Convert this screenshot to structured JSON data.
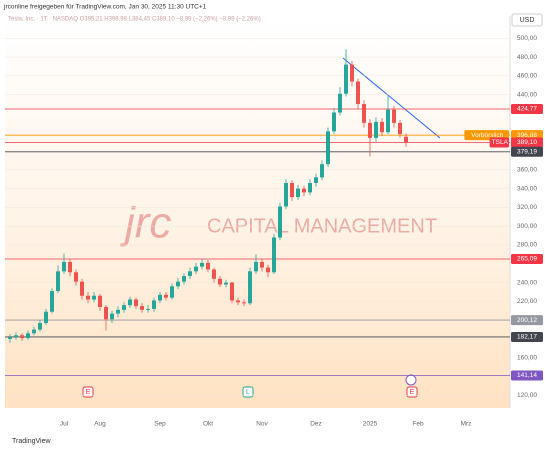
{
  "header": {
    "shared_by": "jrconline freigegeben für TradingView.com, Jan 30, 2025 11:30 UTC+1",
    "legend": "Tesla, Inc. · 1T · NASDAQ  O395,21 H398,98 L384,45 C389,10 −8,99 (−2,26%) −8,99 (−2,26%)"
  },
  "currency": "USD",
  "watermark": {
    "logo": "jrc",
    "text": "CAPITAL MANAGEMENT"
  },
  "footer": "TradingView",
  "events": [
    "E",
    "L",
    "E"
  ],
  "chart_data": {
    "type": "candlestick",
    "categories": [
      null,
      null,
      null,
      null,
      null,
      null,
      null,
      null,
      null,
      "Jul",
      null,
      null,
      null,
      null,
      null,
      "Aug",
      null,
      null,
      null,
      null,
      null,
      null,
      null,
      null,
      null,
      "Sep",
      null,
      null,
      null,
      null,
      null,
      null,
      null,
      "Okt",
      null,
      null,
      null,
      null,
      null,
      null,
      null,
      null,
      "Nov",
      null,
      null,
      null,
      null,
      null,
      null,
      null,
      null,
      "Dez",
      null,
      null,
      null,
      null,
      null,
      null,
      null,
      null,
      "2025",
      null,
      null,
      null,
      null,
      null,
      null,
      null,
      "Feb",
      null,
      null,
      null,
      null,
      null,
      null,
      null,
      "Mrz"
    ],
    "open": [
      180,
      182,
      184,
      181,
      186,
      190,
      197,
      209,
      231,
      252,
      262,
      251,
      241,
      226,
      222,
      226,
      214,
      201,
      207,
      211,
      216,
      222,
      215,
      211,
      212,
      221,
      227,
      224,
      236,
      241,
      247,
      252,
      257,
      261,
      254,
      244,
      238,
      240,
      221,
      219,
      218,
      252,
      262,
      256,
      251,
      288,
      321,
      346,
      331,
      340,
      336,
      346,
      352,
      366,
      401,
      421,
      441,
      472,
      454,
      430,
      410,
      394,
      411,
      400,
      424,
      410,
      395.21,
      null,
      null,
      null,
      null,
      null,
      null,
      null,
      null,
      null,
      null
    ],
    "high": [
      185,
      187,
      186,
      189,
      193,
      200,
      212,
      234,
      258,
      271,
      265,
      254,
      244,
      230,
      230,
      228,
      216,
      210,
      215,
      219,
      225,
      224,
      218,
      216,
      224,
      230,
      230,
      239,
      245,
      250,
      256,
      261,
      265,
      264,
      256,
      247,
      243,
      241,
      224,
      222,
      256,
      270,
      265,
      259,
      292,
      325,
      350,
      349,
      344,
      343,
      350,
      356,
      370,
      405,
      426,
      448,
      488,
      476,
      457,
      434,
      414,
      416,
      415,
      440,
      428,
      413,
      398.98,
      null,
      null,
      null,
      null,
      null,
      null,
      null,
      null,
      null,
      null
    ],
    "low": [
      176,
      179,
      178,
      179,
      184,
      188,
      195,
      207,
      229,
      249,
      247,
      237,
      222,
      218,
      219,
      210,
      189,
      197,
      203,
      208,
      213,
      212,
      208,
      208,
      209,
      218,
      221,
      222,
      233,
      238,
      244,
      249,
      254,
      251,
      240,
      235,
      235,
      218,
      216,
      215,
      216,
      249,
      252,
      246,
      249,
      285,
      318,
      327,
      328,
      332,
      333,
      342,
      349,
      363,
      398,
      418,
      438,
      449,
      425,
      405,
      374,
      390,
      396,
      398,
      405,
      394,
      384.45,
      null,
      null,
      null,
      null,
      null,
      null,
      null,
      null,
      null,
      null
    ],
    "close": [
      182,
      184,
      181,
      186,
      190,
      197,
      209,
      231,
      252,
      262,
      251,
      241,
      226,
      222,
      226,
      214,
      201,
      207,
      211,
      216,
      222,
      215,
      211,
      212,
      221,
      227,
      224,
      236,
      241,
      247,
      252,
      257,
      261,
      254,
      244,
      238,
      240,
      221,
      219,
      218,
      252,
      262,
      256,
      251,
      288,
      321,
      346,
      331,
      340,
      336,
      346,
      352,
      366,
      401,
      421,
      441,
      472,
      454,
      430,
      410,
      394,
      411,
      400,
      424,
      410,
      398,
      389.1,
      null,
      null,
      null,
      null,
      null,
      null,
      null,
      null,
      null,
      null
    ],
    "up_color": "#26a69a",
    "down_color": "#ef5350",
    "ylim": [
      114,
      512
    ],
    "yticks": [
      {
        "value": 500,
        "label": "500,00"
      },
      {
        "value": 480,
        "label": "480,00"
      },
      {
        "value": 460,
        "label": "460,00"
      },
      {
        "value": 440,
        "label": "440,00"
      },
      {
        "value": 360,
        "label": "360,00"
      },
      {
        "value": 340,
        "label": "340,00"
      },
      {
        "value": 320,
        "label": "320,00"
      },
      {
        "value": 300,
        "label": "300,00"
      },
      {
        "value": 280,
        "label": "280,00"
      },
      {
        "value": 240,
        "label": "240,00"
      },
      {
        "value": 220,
        "label": "220,00"
      },
      {
        "value": 160,
        "label": "160,00"
      },
      {
        "value": 120,
        "label": "120,00"
      }
    ],
    "levels": [
      {
        "value": 424.77,
        "label": "424,77",
        "color": "#f23645"
      },
      {
        "value": 396.88,
        "label": "396,88",
        "color": "#ff9800",
        "name": "Vorbörslich"
      },
      {
        "value": 389.1,
        "label": "389,10",
        "color": "#f23645",
        "name": "TSLA"
      },
      {
        "value": 379.19,
        "label": "379,19",
        "color": "#434651"
      },
      {
        "value": 265.09,
        "label": "265,09",
        "color": "#f23645"
      },
      {
        "value": 200.12,
        "label": "200,12",
        "color": "#9598a1"
      },
      {
        "value": 182.17,
        "label": "182,17",
        "color": "#434651"
      },
      {
        "value": 141.14,
        "label": "141,14",
        "color": "#7e57c2"
      }
    ]
  }
}
